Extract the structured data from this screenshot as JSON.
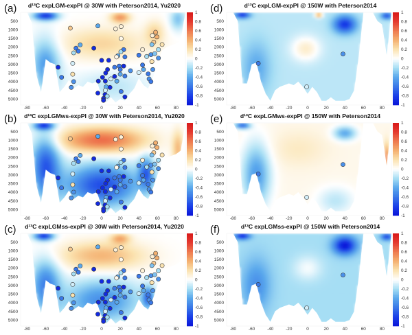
{
  "colorbar": {
    "ticks": [
      "1",
      "0.8",
      "0.6",
      "0.4",
      "0.2",
      "0",
      "-0.2",
      "-0.4",
      "-0.6",
      "-0.8",
      "-1"
    ],
    "range": [
      -1,
      1
    ],
    "colormap": [
      [
        -1,
        "#0a14d8"
      ],
      [
        -0.8,
        "#1a40e8"
      ],
      [
        -0.6,
        "#3a78e8"
      ],
      [
        -0.4,
        "#5aa8ec"
      ],
      [
        -0.2,
        "#a6def4"
      ],
      [
        0,
        "#ffffff"
      ],
      [
        0.2,
        "#fbe3b0"
      ],
      [
        0.4,
        "#f4b070"
      ],
      [
        0.6,
        "#ee7a50"
      ],
      [
        0.8,
        "#e43a30"
      ],
      [
        1,
        "#d81818"
      ]
    ]
  },
  "axes": {
    "x_ticks": [
      "-80",
      "-60",
      "-40",
      "-20",
      "0",
      "20",
      "40",
      "60",
      "80"
    ],
    "y_ticks": [
      "500",
      "1000",
      "1500",
      "2000",
      "2500",
      "3000",
      "3500",
      "4000",
      "4500",
      "5000"
    ],
    "xlim": [
      -87,
      90
    ],
    "ylim": [
      0,
      5350
    ]
  },
  "bathymetry": {
    "lat": [
      -80,
      -75,
      -70,
      -65,
      -60,
      -55,
      -50,
      -45,
      -40,
      -35,
      -30,
      -25,
      -20,
      -15,
      -10,
      -5,
      0,
      5,
      10,
      15,
      20,
      25,
      30,
      35,
      40,
      45,
      50,
      55,
      60,
      65,
      70,
      75,
      80,
      85,
      90
    ],
    "atlantic_30W": [
      0,
      600,
      3600,
      4600,
      2700,
      2900,
      3000,
      4600,
      4300,
      3900,
      4400,
      4200,
      4300,
      4000,
      4100,
      4000,
      4800,
      5200,
      4900,
      5200,
      5000,
      5100,
      4700,
      4400,
      3800,
      4200,
      4400,
      3800,
      3000,
      2200,
      2000,
      1900,
      1800,
      1600,
      0
    ],
    "pacific_150W": [
      0,
      500,
      4100,
      4100,
      3000,
      2900,
      4000,
      4700,
      5100,
      4500,
      4300,
      4200,
      4100,
      4200,
      4000,
      4300,
      4700,
      4300,
      4600,
      5100,
      5100,
      4900,
      5100,
      5100,
      5100,
      5000,
      4500,
      2500,
      0,
      0,
      0,
      500,
      700,
      2500,
      0
    ]
  },
  "proxies": {
    "atlantic": [
      [
        -33.6,
        912,
        0.3
      ],
      [
        -4,
        780,
        -0.4
      ],
      [
        15,
        950,
        0.1
      ],
      [
        21,
        820,
        0.1
      ],
      [
        21,
        1510,
        0.05
      ],
      [
        58,
        1150,
        0.4
      ],
      [
        59.5,
        1420,
        0.4
      ],
      [
        54.5,
        1340,
        0.1
      ],
      [
        56,
        1720,
        0.3
      ],
      [
        65,
        1860,
        0.2
      ],
      [
        54,
        1860,
        -0.3
      ],
      [
        -23,
        1880,
        -0.4
      ],
      [
        -27.5,
        2070,
        -0.6
      ],
      [
        -25,
        2240,
        -0.6
      ],
      [
        -30,
        2340,
        -0.2
      ],
      [
        -8.4,
        2070,
        -0.9
      ],
      [
        23.7,
        2150,
        -0.6
      ],
      [
        17.5,
        2500,
        -0.4
      ],
      [
        20.7,
        2280,
        -0.2
      ],
      [
        16,
        2570,
        0.05
      ],
      [
        25,
        2570,
        -0.6
      ],
      [
        40,
        2470,
        -0.6
      ],
      [
        44,
        2150,
        0.1
      ],
      [
        48.4,
        2550,
        -0.2
      ],
      [
        53,
        2440,
        -0.5
      ],
      [
        57,
        2380,
        -0.3
      ],
      [
        61,
        2150,
        -0.2
      ],
      [
        61,
        2640,
        -0.5
      ],
      [
        54,
        2840,
        0.2
      ],
      [
        7.6,
        2770,
        -0.9
      ],
      [
        0,
        2770,
        -0.9
      ],
      [
        6.4,
        3300,
        -0.9
      ],
      [
        4.4,
        3500,
        -0.9
      ],
      [
        14,
        3170,
        -0.6
      ],
      [
        18.8,
        3100,
        -0.6
      ],
      [
        23.7,
        3100,
        -0.9
      ],
      [
        20,
        3300,
        -0.6
      ],
      [
        20,
        3570,
        -0.4
      ],
      [
        31,
        3370,
        -0.5
      ],
      [
        25,
        3680,
        -0.6
      ],
      [
        14,
        3700,
        -0.9
      ],
      [
        10,
        3840,
        -0.1
      ],
      [
        1,
        3750,
        -0.9
      ],
      [
        4,
        3970,
        -0.9
      ],
      [
        16.3,
        3970,
        -0.4
      ],
      [
        -3.5,
        3970,
        -0.9
      ],
      [
        5,
        4300,
        -0.4
      ],
      [
        9,
        4330,
        -0.9
      ],
      [
        4,
        4500,
        -0.1
      ],
      [
        21,
        4570,
        -0.6
      ],
      [
        -4,
        4660,
        -0.9
      ],
      [
        3.7,
        4740,
        -0.9
      ],
      [
        6,
        4840,
        -0.2
      ],
      [
        2,
        4970,
        -0.9
      ],
      [
        2,
        5080,
        -0.9
      ],
      [
        25,
        4880,
        -0.9
      ],
      [
        -46.7,
        3170,
        -0.9
      ],
      [
        -43,
        3750,
        -0.6
      ],
      [
        -31,
        2950,
        -0.1
      ],
      [
        -31,
        3570,
        0.2
      ],
      [
        -30,
        4000,
        -0.5
      ],
      [
        -32.6,
        4330,
        -0.5
      ],
      [
        40,
        3470,
        -0.1
      ],
      [
        44,
        3040,
        -0.6
      ],
      [
        45,
        3300,
        -0.4
      ],
      [
        50,
        3550,
        -0.6
      ],
      [
        51,
        3840,
        -0.5
      ],
      [
        53,
        4000,
        -0.6
      ],
      [
        55,
        3300,
        -0.5
      ]
    ],
    "pacific": [
      [
        -53,
        2950,
        -0.6
      ],
      [
        38,
        2400,
        -0.5
      ],
      [
        -1,
        4300,
        -0.1
      ]
    ]
  },
  "chart_data": [
    {
      "type": "heatmap",
      "label": "(a)",
      "title": "d¹³C expLGM-expPI @ 30W with Peterson2014, Yu2020",
      "basin": "atlantic_30W",
      "proxies": "atlantic",
      "field": {
        "base": 0,
        "blobs": [
          [
            0,
            1800,
            0.25,
            45,
            900
          ],
          [
            20,
            300,
            0.5,
            10,
            300
          ],
          [
            -60,
            200,
            -0.9,
            12,
            250
          ],
          [
            -60,
            3000,
            -0.45,
            15,
            1500
          ],
          [
            10,
            4300,
            -0.15,
            40,
            900
          ],
          [
            57,
            1200,
            0.25,
            10,
            700
          ],
          [
            82,
            400,
            -0.3,
            8,
            600
          ]
        ]
      }
    },
    {
      "type": "heatmap",
      "label": "(d)",
      "title": "d¹³C expLGM-expPI @ 150W with Peterson2014",
      "basin": "pacific_150W",
      "proxies": "pacific",
      "field": {
        "base": -0.15,
        "blobs": [
          [
            40,
            700,
            -0.7,
            12,
            500
          ],
          [
            -2,
            2100,
            0.28,
            15,
            700
          ],
          [
            -55,
            3200,
            -0.25,
            15,
            1500
          ],
          [
            -70,
            150,
            -0.7,
            8,
            200
          ],
          [
            12,
            150,
            0.6,
            4,
            150
          ],
          [
            85,
            200,
            -0.6,
            6,
            200
          ]
        ]
      }
    },
    {
      "type": "heatmap",
      "label": "(b)",
      "title": "d¹³C expLGMws-expPI @ 30W with Peterson2014, Yu2020",
      "basin": "atlantic_30W",
      "proxies": "atlantic",
      "field": {
        "base": 0,
        "blobs": [
          [
            0,
            1000,
            0.65,
            45,
            700
          ],
          [
            0,
            3600,
            -0.75,
            40,
            1200
          ],
          [
            -60,
            2500,
            -0.7,
            15,
            1800
          ],
          [
            48,
            2900,
            -0.6,
            8,
            900
          ],
          [
            -62,
            150,
            -0.8,
            10,
            250
          ],
          [
            82,
            1500,
            0.35,
            6,
            1000
          ]
        ]
      }
    },
    {
      "type": "heatmap",
      "label": "(e)",
      "title": "d¹³C expLGMws-expPI @ 150W with Peterson2014",
      "basin": "pacific_150W",
      "proxies": "pacific",
      "field": {
        "base": 0.05,
        "blobs": [
          [
            -55,
            3000,
            -0.5,
            15,
            1800
          ],
          [
            40,
            600,
            -0.45,
            12,
            400
          ],
          [
            -10,
            1500,
            0.1,
            30,
            1000
          ],
          [
            -70,
            150,
            -0.7,
            8,
            200
          ],
          [
            30,
            4500,
            -0.2,
            20,
            800
          ],
          [
            85,
            2000,
            0.5,
            3,
            800
          ]
        ]
      }
    },
    {
      "type": "heatmap",
      "label": "(c)",
      "title": "d¹³C expLGMss-expPI @ 30W with Peterson2014, Yu2020",
      "basin": "atlantic_30W",
      "proxies": "atlantic",
      "field": {
        "base": 0,
        "blobs": [
          [
            0,
            1300,
            0.38,
            45,
            800
          ],
          [
            20,
            300,
            0.4,
            10,
            300
          ],
          [
            0,
            3900,
            -0.5,
            40,
            1200
          ],
          [
            -60,
            3000,
            -0.55,
            15,
            1500
          ],
          [
            -62,
            150,
            -0.85,
            10,
            250
          ],
          [
            50,
            3700,
            -0.6,
            6,
            600
          ]
        ]
      }
    },
    {
      "type": "heatmap",
      "label": "(f)",
      "title": "d¹³C expLGMss-expPI @ 150W with Peterson2014",
      "basin": "pacific_150W",
      "proxies": "pacific",
      "field": {
        "base": -0.2,
        "blobs": [
          [
            40,
            700,
            -0.8,
            12,
            500
          ],
          [
            0,
            2000,
            0.18,
            15,
            700
          ],
          [
            -55,
            3000,
            -0.3,
            15,
            1500
          ],
          [
            -70,
            150,
            -0.7,
            8,
            200
          ],
          [
            85,
            200,
            -0.6,
            6,
            200
          ]
        ]
      }
    }
  ]
}
